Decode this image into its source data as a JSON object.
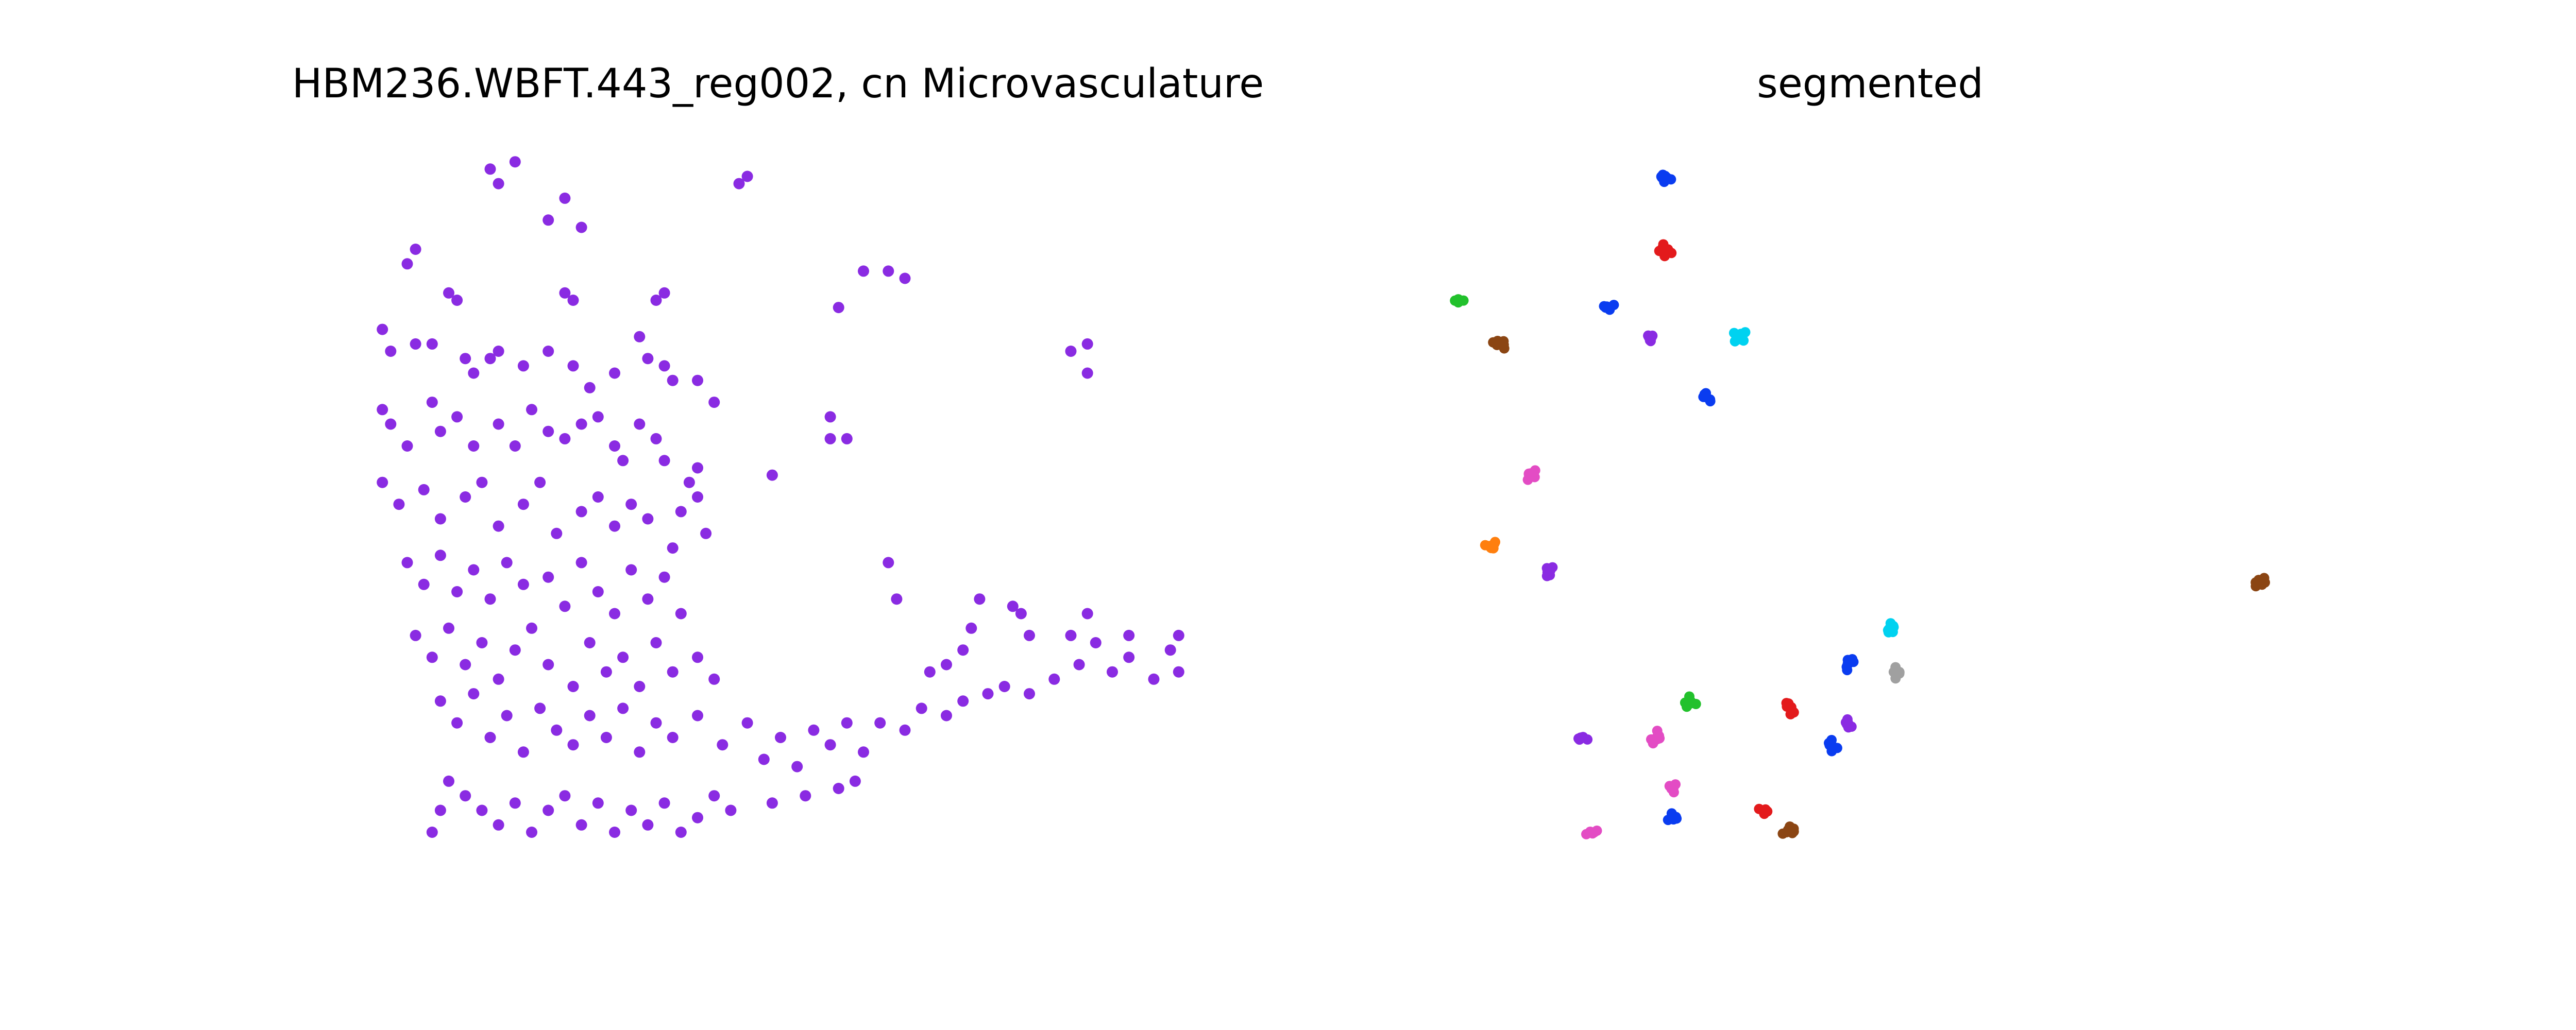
{
  "chart_data": [
    {
      "type": "scatter",
      "title": "HBM236.WBFT.443_reg002, cn Microvasculature",
      "axes_visible": false,
      "color": "#8A2BE2",
      "xlim": [
        0,
        1
      ],
      "ylim": [
        0,
        1
      ],
      "series": [
        {
          "values": [
            [
              0.15,
              0.98
            ],
            [
              0.16,
              0.96
            ],
            [
              0.18,
              0.99
            ],
            [
              0.22,
              0.91
            ],
            [
              0.24,
              0.94
            ],
            [
              0.26,
              0.9
            ],
            [
              0.46,
              0.97
            ],
            [
              0.45,
              0.96
            ],
            [
              0.05,
              0.85
            ],
            [
              0.06,
              0.87
            ],
            [
              0.1,
              0.81
            ],
            [
              0.11,
              0.8
            ],
            [
              0.24,
              0.81
            ],
            [
              0.25,
              0.8
            ],
            [
              0.35,
              0.8
            ],
            [
              0.36,
              0.81
            ],
            [
              0.02,
              0.76
            ],
            [
              0.03,
              0.73
            ],
            [
              0.06,
              0.74
            ],
            [
              0.08,
              0.74
            ],
            [
              0.12,
              0.72
            ],
            [
              0.13,
              0.7
            ],
            [
              0.15,
              0.72
            ],
            [
              0.16,
              0.73
            ],
            [
              0.19,
              0.71
            ],
            [
              0.22,
              0.73
            ],
            [
              0.25,
              0.71
            ],
            [
              0.27,
              0.68
            ],
            [
              0.3,
              0.7
            ],
            [
              0.33,
              0.75
            ],
            [
              0.34,
              0.72
            ],
            [
              0.36,
              0.71
            ],
            [
              0.37,
              0.69
            ],
            [
              0.4,
              0.69
            ],
            [
              0.42,
              0.66
            ],
            [
              0.02,
              0.65
            ],
            [
              0.03,
              0.63
            ],
            [
              0.05,
              0.6
            ],
            [
              0.08,
              0.66
            ],
            [
              0.09,
              0.62
            ],
            [
              0.11,
              0.64
            ],
            [
              0.13,
              0.6
            ],
            [
              0.16,
              0.63
            ],
            [
              0.18,
              0.6
            ],
            [
              0.2,
              0.65
            ],
            [
              0.22,
              0.62
            ],
            [
              0.24,
              0.61
            ],
            [
              0.26,
              0.63
            ],
            [
              0.28,
              0.64
            ],
            [
              0.3,
              0.6
            ],
            [
              0.31,
              0.58
            ],
            [
              0.33,
              0.63
            ],
            [
              0.35,
              0.61
            ],
            [
              0.36,
              0.58
            ],
            [
              0.39,
              0.55
            ],
            [
              0.4,
              0.57
            ],
            [
              0.02,
              0.55
            ],
            [
              0.04,
              0.52
            ],
            [
              0.07,
              0.54
            ],
            [
              0.09,
              0.5
            ],
            [
              0.12,
              0.53
            ],
            [
              0.14,
              0.55
            ],
            [
              0.16,
              0.49
            ],
            [
              0.19,
              0.52
            ],
            [
              0.21,
              0.55
            ],
            [
              0.23,
              0.48
            ],
            [
              0.26,
              0.51
            ],
            [
              0.28,
              0.53
            ],
            [
              0.3,
              0.49
            ],
            [
              0.32,
              0.52
            ],
            [
              0.34,
              0.5
            ],
            [
              0.37,
              0.46
            ],
            [
              0.38,
              0.51
            ],
            [
              0.4,
              0.53
            ],
            [
              0.41,
              0.48
            ],
            [
              0.05,
              0.44
            ],
            [
              0.07,
              0.41
            ],
            [
              0.09,
              0.45
            ],
            [
              0.11,
              0.4
            ],
            [
              0.13,
              0.43
            ],
            [
              0.15,
              0.39
            ],
            [
              0.17,
              0.44
            ],
            [
              0.19,
              0.41
            ],
            [
              0.22,
              0.42
            ],
            [
              0.24,
              0.38
            ],
            [
              0.26,
              0.44
            ],
            [
              0.28,
              0.4
            ],
            [
              0.3,
              0.37
            ],
            [
              0.32,
              0.43
            ],
            [
              0.34,
              0.39
            ],
            [
              0.36,
              0.42
            ],
            [
              0.38,
              0.37
            ],
            [
              0.06,
              0.34
            ],
            [
              0.08,
              0.31
            ],
            [
              0.1,
              0.35
            ],
            [
              0.12,
              0.3
            ],
            [
              0.14,
              0.33
            ],
            [
              0.16,
              0.28
            ],
            [
              0.18,
              0.32
            ],
            [
              0.2,
              0.35
            ],
            [
              0.22,
              0.3
            ],
            [
              0.25,
              0.27
            ],
            [
              0.27,
              0.33
            ],
            [
              0.29,
              0.29
            ],
            [
              0.31,
              0.31
            ],
            [
              0.33,
              0.27
            ],
            [
              0.35,
              0.33
            ],
            [
              0.37,
              0.29
            ],
            [
              0.4,
              0.31
            ],
            [
              0.42,
              0.28
            ],
            [
              0.09,
              0.25
            ],
            [
              0.11,
              0.22
            ],
            [
              0.13,
              0.26
            ],
            [
              0.15,
              0.2
            ],
            [
              0.17,
              0.23
            ],
            [
              0.19,
              0.18
            ],
            [
              0.21,
              0.24
            ],
            [
              0.23,
              0.21
            ],
            [
              0.25,
              0.19
            ],
            [
              0.27,
              0.23
            ],
            [
              0.29,
              0.2
            ],
            [
              0.31,
              0.24
            ],
            [
              0.33,
              0.18
            ],
            [
              0.35,
              0.22
            ],
            [
              0.37,
              0.2
            ],
            [
              0.4,
              0.23
            ],
            [
              0.43,
              0.19
            ],
            [
              0.46,
              0.22
            ],
            [
              0.48,
              0.17
            ],
            [
              0.5,
              0.2
            ],
            [
              0.52,
              0.16
            ],
            [
              0.54,
              0.21
            ],
            [
              0.56,
              0.19
            ],
            [
              0.58,
              0.22
            ],
            [
              0.6,
              0.18
            ],
            [
              0.62,
              0.22
            ],
            [
              0.65,
              0.21
            ],
            [
              0.67,
              0.24
            ],
            [
              0.7,
              0.23
            ],
            [
              0.72,
              0.25
            ],
            [
              0.75,
              0.26
            ],
            [
              0.77,
              0.27
            ],
            [
              0.8,
              0.26
            ],
            [
              0.83,
              0.28
            ],
            [
              0.86,
              0.3
            ],
            [
              0.88,
              0.33
            ],
            [
              0.9,
              0.29
            ],
            [
              0.92,
              0.31
            ],
            [
              0.95,
              0.28
            ],
            [
              0.97,
              0.32
            ],
            [
              0.98,
              0.29
            ],
            [
              0.98,
              0.34
            ],
            [
              0.92,
              0.34
            ],
            [
              0.85,
              0.34
            ],
            [
              0.87,
              0.37
            ],
            [
              0.79,
              0.37
            ],
            [
              0.73,
              0.35
            ],
            [
              0.72,
              0.32
            ],
            [
              0.7,
              0.3
            ],
            [
              0.68,
              0.29
            ],
            [
              0.57,
              0.13
            ],
            [
              0.59,
              0.14
            ],
            [
              0.53,
              0.12
            ],
            [
              0.49,
              0.11
            ],
            [
              0.42,
              0.12
            ],
            [
              0.44,
              0.1
            ],
            [
              0.4,
              0.09
            ],
            [
              0.1,
              0.14
            ],
            [
              0.12,
              0.12
            ],
            [
              0.14,
              0.1
            ],
            [
              0.16,
              0.08
            ],
            [
              0.18,
              0.11
            ],
            [
              0.2,
              0.07
            ],
            [
              0.22,
              0.1
            ],
            [
              0.24,
              0.12
            ],
            [
              0.26,
              0.08
            ],
            [
              0.28,
              0.11
            ],
            [
              0.3,
              0.07
            ],
            [
              0.32,
              0.1
            ],
            [
              0.34,
              0.08
            ],
            [
              0.36,
              0.11
            ],
            [
              0.38,
              0.07
            ],
            [
              0.08,
              0.07
            ],
            [
              0.09,
              0.1
            ],
            [
              0.57,
              0.79
            ],
            [
              0.6,
              0.84
            ],
            [
              0.63,
              0.84
            ],
            [
              0.65,
              0.83
            ],
            [
              0.85,
              0.73
            ],
            [
              0.87,
              0.74
            ],
            [
              0.87,
              0.7
            ],
            [
              0.56,
              0.61
            ],
            [
              0.58,
              0.61
            ],
            [
              0.56,
              0.64
            ],
            [
              0.49,
              0.56
            ],
            [
              0.63,
              0.44
            ],
            [
              0.64,
              0.39
            ],
            [
              0.74,
              0.39
            ],
            [
              0.78,
              0.38
            ],
            [
              0.8,
              0.34
            ]
          ]
        }
      ]
    },
    {
      "type": "scatter",
      "title": "segmented",
      "axes_visible": false,
      "xlim": [
        0,
        1
      ],
      "ylim": [
        0,
        1
      ],
      "series": [
        {
          "color": "#0A3CF0",
          "values": [
            [
              0.25,
              0.97
            ],
            [
              0.18,
              0.79
            ],
            [
              0.3,
              0.67
            ],
            [
              0.45,
              0.19
            ],
            [
              0.26,
              0.09
            ],
            [
              0.47,
              0.3
            ]
          ]
        },
        {
          "color": "#E31A1C",
          "values": [
            [
              0.25,
              0.87
            ],
            [
              0.4,
              0.24
            ],
            [
              0.37,
              0.1
            ]
          ]
        },
        {
          "color": "#22C12C",
          "values": [
            [
              0.0,
              0.8
            ],
            [
              0.28,
              0.25
            ]
          ]
        },
        {
          "color": "#8B4513",
          "values": [
            [
              0.05,
              0.74
            ],
            [
              0.97,
              0.41
            ],
            [
              0.4,
              0.07
            ]
          ]
        },
        {
          "color": "#8A2BE2",
          "values": [
            [
              0.23,
              0.75
            ],
            [
              0.11,
              0.43
            ],
            [
              0.15,
              0.2
            ],
            [
              0.47,
              0.22
            ]
          ]
        },
        {
          "color": "#00D2F0",
          "values": [
            [
              0.34,
              0.75
            ],
            [
              0.52,
              0.35
            ]
          ]
        },
        {
          "color": "#E34CC4",
          "values": [
            [
              0.09,
              0.56
            ],
            [
              0.24,
              0.2
            ],
            [
              0.26,
              0.13
            ],
            [
              0.16,
              0.07
            ]
          ]
        },
        {
          "color": "#FF7F0E",
          "values": [
            [
              0.04,
              0.46
            ]
          ]
        },
        {
          "color": "#A0A0A0",
          "values": [
            [
              0.53,
              0.29
            ]
          ]
        }
      ]
    }
  ]
}
